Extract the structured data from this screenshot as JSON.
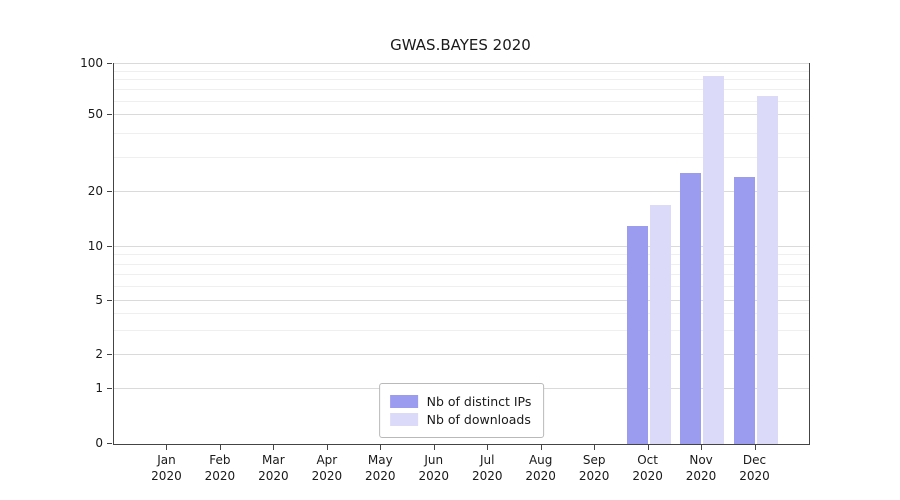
{
  "chart_data": {
    "type": "bar",
    "title": "GWAS.BAYES 2020",
    "categories": [
      {
        "line1": "Jan",
        "line2": "2020"
      },
      {
        "line1": "Feb",
        "line2": "2020"
      },
      {
        "line1": "Mar",
        "line2": "2020"
      },
      {
        "line1": "Apr",
        "line2": "2020"
      },
      {
        "line1": "May",
        "line2": "2020"
      },
      {
        "line1": "Jun",
        "line2": "2020"
      },
      {
        "line1": "Jul",
        "line2": "2020"
      },
      {
        "line1": "Aug",
        "line2": "2020"
      },
      {
        "line1": "Sep",
        "line2": "2020"
      },
      {
        "line1": "Oct",
        "line2": "2020"
      },
      {
        "line1": "Nov",
        "line2": "2020"
      },
      {
        "line1": "Dec",
        "line2": "2020"
      }
    ],
    "series": [
      {
        "name": "Nb of distinct IPs",
        "color": "#9b9bef",
        "values": [
          null,
          null,
          null,
          null,
          null,
          null,
          null,
          null,
          null,
          13,
          25,
          24
        ]
      },
      {
        "name": "Nb of downloads",
        "color": "#dbdbf9",
        "values": [
          null,
          null,
          null,
          null,
          null,
          null,
          null,
          null,
          null,
          17,
          85,
          65
        ]
      }
    ],
    "y_axis": {
      "ticks": [
        0,
        1,
        2,
        5,
        10,
        20,
        50,
        100
      ],
      "scale": "log-like",
      "range": [
        0,
        100
      ]
    },
    "x_axis": {
      "label": "",
      "year": "2020"
    },
    "legend_position": "bottom-center-inside",
    "grid": true
  }
}
